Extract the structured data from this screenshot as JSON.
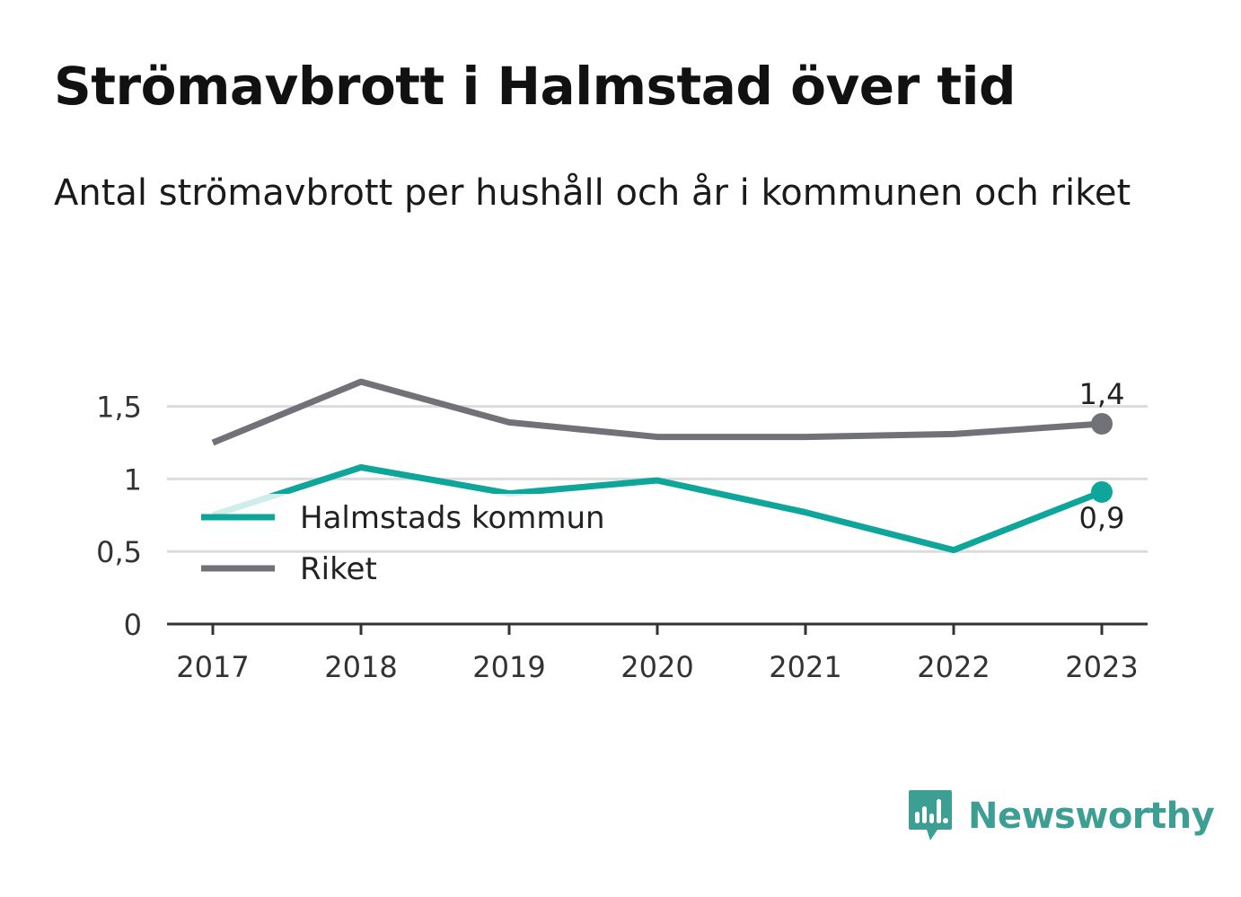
{
  "title": "Strömavbrott i Halmstad över tid",
  "subtitle": "Antal strömavbrott per hushåll och år i kommunen och riket",
  "brand": "Newsworthy",
  "colors": {
    "kommun": "#0ea59a",
    "riket": "#717178",
    "grid": "#dcdcdc",
    "axis": "#333333",
    "brand": "#3d9e94"
  },
  "chart_data": {
    "type": "line",
    "title": "Strömavbrott i Halmstad över tid",
    "subtitle": "Antal strömavbrott per hushåll och år i kommunen och riket",
    "xlabel": "",
    "ylabel": "",
    "categories": [
      "2017",
      "2018",
      "2019",
      "2020",
      "2021",
      "2022",
      "2023"
    ],
    "ylim": [
      0,
      1.9
    ],
    "yticks": [
      {
        "value": 0,
        "label": "0"
      },
      {
        "value": 0.5,
        "label": "0,5"
      },
      {
        "value": 1,
        "label": "1"
      },
      {
        "value": 1.5,
        "label": "1,5"
      }
    ],
    "grid": true,
    "legend": "bottom-left",
    "series": [
      {
        "name": "Halmstads kommun",
        "color": "#0ea59a",
        "values": [
          0.75,
          1.08,
          0.9,
          0.99,
          0.77,
          0.51,
          0.91
        ],
        "end_label": "0,9"
      },
      {
        "name": "Riket",
        "color": "#717178",
        "values": [
          1.25,
          1.67,
          1.39,
          1.29,
          1.29,
          1.31,
          1.38
        ],
        "end_label": "1,4"
      }
    ]
  }
}
